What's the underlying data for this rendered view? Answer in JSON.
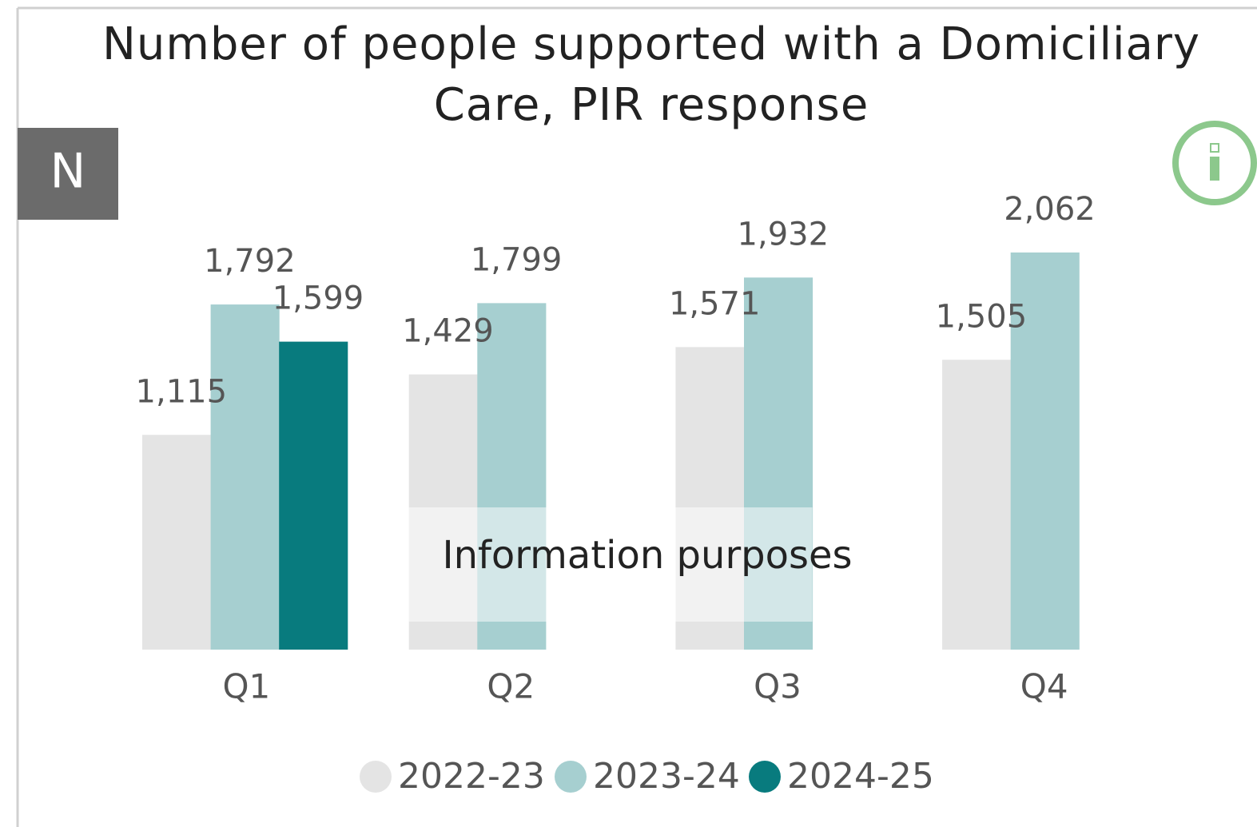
{
  "chart_data": {
    "type": "bar",
    "title": "Number of people supported with a Domiciliary Care, PIR response",
    "badge": "N",
    "watermark": "Information purposes",
    "categories": [
      "Q1",
      "Q2",
      "Q3",
      "Q4"
    ],
    "series": [
      {
        "name": "2022-23",
        "color": "#e4e4e4",
        "values": [
          1115,
          1429,
          1571,
          1505
        ],
        "value_labels": [
          "1,115",
          "1,429",
          "1,571",
          "1,505"
        ]
      },
      {
        "name": "2023-24",
        "color": "#a6cfd0",
        "values": [
          1792,
          1799,
          1932,
          2062
        ],
        "value_labels": [
          "1,792",
          "1,799",
          "1,932",
          "2,062"
        ]
      },
      {
        "name": "2024-25",
        "color": "#087b7e",
        "values": [
          1599,
          null,
          null,
          null
        ],
        "value_labels": [
          "1,599",
          null,
          null,
          null
        ]
      }
    ]
  }
}
